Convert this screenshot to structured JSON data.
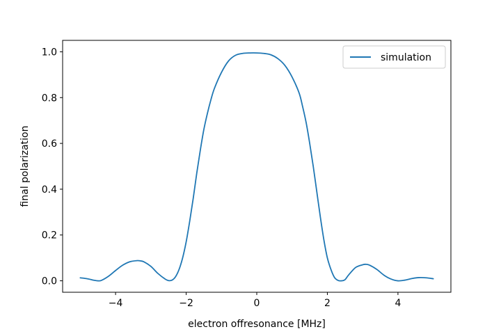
{
  "chart_data": {
    "type": "line",
    "title": "",
    "xlabel": "electron offresonance [MHz]",
    "ylabel": "final polarization",
    "xlim": [
      -5.5,
      5.5
    ],
    "ylim": [
      -0.05,
      1.05
    ],
    "xticks": [
      -4,
      -2,
      0,
      2,
      4
    ],
    "xtick_labels": [
      "−4",
      "−2",
      "0",
      "2",
      "4"
    ],
    "yticks": [
      0.0,
      0.2,
      0.4,
      0.6,
      0.8,
      1.0
    ],
    "ytick_labels": [
      "0.0",
      "0.2",
      "0.4",
      "0.6",
      "0.8",
      "1.0"
    ],
    "grid": false,
    "legend_position": "upper right",
    "series": [
      {
        "name": "simulation",
        "color": "#1f77b4",
        "x": [
          -5.0,
          -4.8,
          -4.6,
          -4.5,
          -4.4,
          -4.2,
          -4.0,
          -3.8,
          -3.6,
          -3.4,
          -3.3,
          -3.2,
          -3.0,
          -2.8,
          -2.6,
          -2.5,
          -2.4,
          -2.3,
          -2.2,
          -2.1,
          -2.0,
          -1.9,
          -1.8,
          -1.7,
          -1.6,
          -1.5,
          -1.4,
          -1.3,
          -1.2,
          -1.0,
          -0.8,
          -0.6,
          -0.4,
          -0.2,
          0.0,
          0.2,
          0.4,
          0.6,
          0.8,
          1.0,
          1.2,
          1.3,
          1.4,
          1.5,
          1.6,
          1.7,
          1.8,
          1.9,
          2.0,
          2.1,
          2.2,
          2.3,
          2.4,
          2.5,
          2.6,
          2.8,
          3.0,
          3.1,
          3.2,
          3.4,
          3.6,
          3.8,
          4.0,
          4.2,
          4.4,
          4.6,
          4.8,
          5.0
        ],
        "y": [
          0.013,
          0.009,
          0.002,
          0.0,
          0.002,
          0.02,
          0.045,
          0.068,
          0.083,
          0.088,
          0.087,
          0.083,
          0.063,
          0.032,
          0.008,
          0.001,
          0.003,
          0.018,
          0.05,
          0.1,
          0.17,
          0.26,
          0.36,
          0.47,
          0.57,
          0.66,
          0.73,
          0.79,
          0.84,
          0.91,
          0.96,
          0.985,
          0.993,
          0.995,
          0.995,
          0.993,
          0.987,
          0.97,
          0.94,
          0.89,
          0.82,
          0.76,
          0.69,
          0.6,
          0.5,
          0.39,
          0.28,
          0.18,
          0.1,
          0.05,
          0.015,
          0.002,
          0.0,
          0.005,
          0.025,
          0.058,
          0.07,
          0.072,
          0.068,
          0.05,
          0.025,
          0.008,
          0.0,
          0.003,
          0.01,
          0.014,
          0.013,
          0.009
        ]
      }
    ]
  }
}
